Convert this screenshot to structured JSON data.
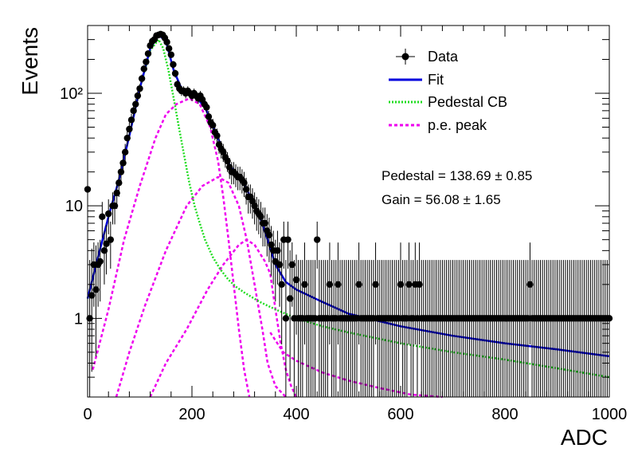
{
  "chart_data": {
    "type": "scatter",
    "xlabel": "ADC",
    "ylabel": "Events",
    "xlim": [
      0,
      1000
    ],
    "ylim": [
      0.2,
      400
    ],
    "yscale": "log",
    "grid": false,
    "legend_position": "top-right",
    "x_ticks": [
      "0",
      "200",
      "400",
      "600",
      "800",
      "1000"
    ],
    "y_ticks": [
      "1",
      "10",
      "10²"
    ],
    "legend": [
      {
        "label": "Data",
        "style": "marker",
        "color": "#000000"
      },
      {
        "label": "Fit",
        "style": "solid",
        "color": "#0000dd"
      },
      {
        "label": "Pedestal CB",
        "style": "dotted",
        "color": "#22dd22"
      },
      {
        "label": "p.e. peak",
        "style": "dashed",
        "color": "#ee00ee"
      }
    ],
    "annotations": [
      "Pedestal = 138.69 ± 0.85",
      "Gain = 56.08 ± 1.65"
    ],
    "fit_params": {
      "pedestal": 138.69,
      "pedestal_err": 0.85,
      "gain": 56.08,
      "gain_err": 1.65
    },
    "data_points": [
      [
        0,
        14
      ],
      [
        4,
        1
      ],
      [
        8,
        1.6
      ],
      [
        12,
        3
      ],
      [
        16,
        1.8
      ],
      [
        20,
        3
      ],
      [
        24,
        3.2
      ],
      [
        28,
        8
      ],
      [
        32,
        4
      ],
      [
        36,
        4.6
      ],
      [
        40,
        8.5
      ],
      [
        44,
        5
      ],
      [
        48,
        10
      ],
      [
        52,
        10
      ],
      [
        56,
        13
      ],
      [
        60,
        16
      ],
      [
        64,
        20
      ],
      [
        68,
        24
      ],
      [
        72,
        30
      ],
      [
        76,
        40
      ],
      [
        80,
        48
      ],
      [
        84,
        58
      ],
      [
        88,
        70
      ],
      [
        92,
        80
      ],
      [
        96,
        95
      ],
      [
        100,
        110
      ],
      [
        104,
        135
      ],
      [
        108,
        165
      ],
      [
        112,
        190
      ],
      [
        116,
        225
      ],
      [
        120,
        265
      ],
      [
        124,
        290
      ],
      [
        128,
        300
      ],
      [
        132,
        325
      ],
      [
        136,
        330
      ],
      [
        140,
        335
      ],
      [
        144,
        330
      ],
      [
        148,
        310
      ],
      [
        152,
        285
      ],
      [
        156,
        250
      ],
      [
        160,
        220
      ],
      [
        164,
        180
      ],
      [
        168,
        150
      ],
      [
        172,
        120
      ],
      [
        176,
        110
      ],
      [
        180,
        105
      ],
      [
        184,
        105
      ],
      [
        188,
        100
      ],
      [
        192,
        105
      ],
      [
        196,
        100
      ],
      [
        200,
        95
      ],
      [
        204,
        100
      ],
      [
        208,
        95
      ],
      [
        212,
        90
      ],
      [
        216,
        95
      ],
      [
        220,
        88
      ],
      [
        224,
        80
      ],
      [
        228,
        75
      ],
      [
        232,
        62
      ],
      [
        236,
        55
      ],
      [
        240,
        52
      ],
      [
        244,
        45
      ],
      [
        248,
        42
      ],
      [
        252,
        35
      ],
      [
        256,
        32
      ],
      [
        260,
        30
      ],
      [
        264,
        27
      ],
      [
        268,
        25
      ],
      [
        272,
        22
      ],
      [
        276,
        20
      ],
      [
        280,
        20
      ],
      [
        284,
        19
      ],
      [
        288,
        18
      ],
      [
        292,
        18
      ],
      [
        296,
        17
      ],
      [
        300,
        16
      ],
      [
        304,
        14
      ],
      [
        308,
        12
      ],
      [
        312,
        12
      ],
      [
        316,
        11
      ],
      [
        320,
        10
      ],
      [
        324,
        9
      ],
      [
        328,
        8.5
      ],
      [
        332,
        8
      ],
      [
        336,
        7
      ],
      [
        340,
        7
      ],
      [
        344,
        6
      ],
      [
        348,
        5.5
      ],
      [
        352,
        4.5
      ],
      [
        356,
        4
      ],
      [
        360,
        3.2
      ],
      [
        364,
        4
      ],
      [
        368,
        3
      ],
      [
        372,
        2
      ],
      [
        376,
        5
      ],
      [
        380,
        1
      ],
      [
        384,
        5
      ],
      [
        388,
        1.5
      ],
      [
        392,
        3
      ],
      [
        396,
        1
      ],
      [
        400,
        2.2
      ],
      [
        404,
        1
      ],
      [
        408,
        1
      ],
      [
        412,
        1
      ],
      [
        416,
        2
      ],
      [
        420,
        1
      ],
      [
        424,
        1
      ],
      [
        428,
        1
      ],
      [
        432,
        1
      ],
      [
        436,
        1
      ],
      [
        440,
        5
      ],
      [
        444,
        1
      ],
      [
        448,
        1
      ],
      [
        452,
        1
      ],
      [
        456,
        1
      ],
      [
        460,
        1
      ],
      [
        464,
        2
      ],
      [
        468,
        1
      ],
      [
        472,
        1
      ],
      [
        476,
        1
      ],
      [
        480,
        2
      ],
      [
        484,
        1
      ],
      [
        488,
        1
      ],
      [
        492,
        1
      ],
      [
        496,
        1
      ],
      [
        500,
        1
      ],
      [
        504,
        1
      ],
      [
        508,
        1
      ],
      [
        512,
        1
      ],
      [
        516,
        1
      ],
      [
        520,
        2
      ],
      [
        524,
        1
      ],
      [
        528,
        1
      ],
      [
        532,
        1
      ],
      [
        536,
        1
      ],
      [
        540,
        1
      ],
      [
        544,
        1
      ],
      [
        548,
        1
      ],
      [
        552,
        2
      ],
      [
        556,
        1
      ],
      [
        560,
        1
      ],
      [
        564,
        1
      ],
      [
        568,
        1
      ],
      [
        572,
        1
      ],
      [
        576,
        1
      ],
      [
        580,
        1
      ],
      [
        584,
        1
      ],
      [
        588,
        1
      ],
      [
        592,
        1
      ],
      [
        596,
        1
      ],
      [
        600,
        2
      ],
      [
        604,
        1
      ],
      [
        608,
        1
      ],
      [
        612,
        1
      ],
      [
        616,
        2
      ],
      [
        620,
        1
      ],
      [
        624,
        1
      ],
      [
        628,
        2
      ],
      [
        632,
        1
      ],
      [
        636,
        2
      ],
      [
        640,
        1
      ],
      [
        644,
        1
      ],
      [
        648,
        1
      ],
      [
        652,
        1
      ],
      [
        656,
        1
      ],
      [
        660,
        1
      ],
      [
        664,
        1
      ],
      [
        668,
        1
      ],
      [
        672,
        1
      ],
      [
        676,
        1
      ],
      [
        680,
        1
      ],
      [
        684,
        1
      ],
      [
        688,
        1
      ],
      [
        692,
        1
      ],
      [
        696,
        1
      ],
      [
        700,
        1
      ],
      [
        704,
        1
      ],
      [
        708,
        1
      ],
      [
        712,
        1
      ],
      [
        716,
        1
      ],
      [
        720,
        1
      ],
      [
        724,
        1
      ],
      [
        728,
        1
      ],
      [
        732,
        1
      ],
      [
        736,
        1
      ],
      [
        740,
        1
      ],
      [
        744,
        1
      ],
      [
        748,
        1
      ],
      [
        752,
        1
      ],
      [
        756,
        1
      ],
      [
        760,
        1
      ],
      [
        764,
        1
      ],
      [
        768,
        1
      ],
      [
        772,
        1
      ],
      [
        776,
        1
      ],
      [
        780,
        1
      ],
      [
        784,
        1
      ],
      [
        788,
        1
      ],
      [
        792,
        1
      ],
      [
        796,
        1
      ],
      [
        800,
        1
      ],
      [
        804,
        1
      ],
      [
        808,
        1
      ],
      [
        812,
        1
      ],
      [
        816,
        1
      ],
      [
        820,
        1
      ],
      [
        824,
        1
      ],
      [
        828,
        1
      ],
      [
        832,
        1
      ],
      [
        836,
        1
      ],
      [
        840,
        1
      ],
      [
        844,
        1
      ],
      [
        848,
        2
      ],
      [
        852,
        1
      ],
      [
        856,
        1
      ],
      [
        860,
        1
      ],
      [
        864,
        1
      ],
      [
        868,
        1
      ],
      [
        872,
        1
      ],
      [
        876,
        1
      ],
      [
        880,
        1
      ],
      [
        884,
        1
      ],
      [
        888,
        1
      ],
      [
        892,
        1
      ],
      [
        896,
        1
      ],
      [
        900,
        1
      ],
      [
        904,
        1
      ],
      [
        908,
        1
      ],
      [
        912,
        1
      ],
      [
        916,
        1
      ],
      [
        920,
        1
      ],
      [
        924,
        1
      ],
      [
        928,
        1
      ],
      [
        932,
        1
      ],
      [
        936,
        1
      ],
      [
        940,
        1
      ],
      [
        944,
        1
      ],
      [
        948,
        1
      ],
      [
        952,
        1
      ],
      [
        956,
        1
      ],
      [
        960,
        1
      ],
      [
        964,
        1
      ],
      [
        968,
        1
      ],
      [
        972,
        1
      ],
      [
        976,
        1
      ],
      [
        980,
        1
      ],
      [
        984,
        1
      ],
      [
        988,
        1
      ],
      [
        992,
        1
      ],
      [
        996,
        1
      ],
      [
        1000,
        1
      ]
    ],
    "curves": {
      "fit": [
        [
          0,
          1.5
        ],
        [
          20,
          3.5
        ],
        [
          40,
          8
        ],
        [
          60,
          17
        ],
        [
          80,
          42
        ],
        [
          100,
          110
        ],
        [
          120,
          250
        ],
        [
          136,
          330
        ],
        [
          150,
          290
        ],
        [
          165,
          160
        ],
        [
          180,
          110
        ],
        [
          195,
          100
        ],
        [
          210,
          90
        ],
        [
          225,
          75
        ],
        [
          240,
          52
        ],
        [
          255,
          35
        ],
        [
          270,
          24
        ],
        [
          285,
          19
        ],
        [
          300,
          16
        ],
        [
          315,
          11
        ],
        [
          330,
          8
        ],
        [
          345,
          5
        ],
        [
          360,
          3
        ],
        [
          380,
          2.1
        ],
        [
          400,
          1.8
        ],
        [
          450,
          1.4
        ],
        [
          500,
          1.1
        ],
        [
          600,
          0.85
        ],
        [
          700,
          0.7
        ],
        [
          800,
          0.6
        ],
        [
          900,
          0.53
        ],
        [
          1000,
          0.46
        ]
      ],
      "pedestal_cb": [
        [
          0,
          1.5
        ],
        [
          20,
          3.5
        ],
        [
          40,
          8
        ],
        [
          60,
          17
        ],
        [
          80,
          42
        ],
        [
          100,
          110
        ],
        [
          120,
          240
        ],
        [
          136,
          300
        ],
        [
          145,
          250
        ],
        [
          155,
          160
        ],
        [
          165,
          90
        ],
        [
          175,
          50
        ],
        [
          185,
          28
        ],
        [
          195,
          16
        ],
        [
          205,
          10
        ],
        [
          215,
          7
        ],
        [
          225,
          5
        ],
        [
          240,
          3.5
        ],
        [
          255,
          2.7
        ],
        [
          270,
          2.2
        ],
        [
          285,
          1.9
        ],
        [
          300,
          1.7
        ],
        [
          330,
          1.4
        ],
        [
          360,
          1.2
        ],
        [
          400,
          1.0
        ],
        [
          450,
          0.85
        ],
        [
          500,
          0.75
        ],
        [
          600,
          0.6
        ],
        [
          700,
          0.5
        ],
        [
          800,
          0.43
        ],
        [
          900,
          0.36
        ],
        [
          1000,
          0.3
        ]
      ],
      "pe_peak_1": [
        [
          10,
          0.35
        ],
        [
          40,
          1.2
        ],
        [
          70,
          5
        ],
        [
          100,
          15
        ],
        [
          130,
          40
        ],
        [
          150,
          65
        ],
        [
          170,
          80
        ],
        [
          195,
          90
        ],
        [
          215,
          80
        ],
        [
          235,
          50
        ],
        [
          250,
          25
        ],
        [
          260,
          12
        ],
        [
          270,
          5
        ],
        [
          280,
          2
        ],
        [
          290,
          0.8
        ],
        [
          300,
          0.35
        ],
        [
          310,
          0.2
        ]
      ],
      "pe_peak_2": [
        [
          55,
          0.2
        ],
        [
          80,
          0.5
        ],
        [
          110,
          1.3
        ],
        [
          150,
          4
        ],
        [
          190,
          10
        ],
        [
          220,
          15
        ],
        [
          250,
          18
        ],
        [
          270,
          16
        ],
        [
          290,
          10
        ],
        [
          305,
          5
        ],
        [
          320,
          2
        ],
        [
          335,
          0.8
        ],
        [
          345,
          0.4
        ],
        [
          360,
          0.25
        ],
        [
          380,
          0.2
        ]
      ],
      "pe_peak_3": [
        [
          120,
          0.2
        ],
        [
          150,
          0.4
        ],
        [
          190,
          0.8
        ],
        [
          230,
          1.8
        ],
        [
          260,
          3
        ],
        [
          290,
          4.5
        ],
        [
          305,
          5
        ],
        [
          320,
          4.5
        ],
        [
          340,
          3.2
        ],
        [
          350,
          2.5
        ],
        [
          360,
          1.2
        ],
        [
          370,
          0.6
        ],
        [
          380,
          0.35
        ],
        [
          390,
          0.25
        ],
        [
          400,
          0.2
        ]
      ],
      "pe_peak_tail": [
        [
          350,
          0.75
        ],
        [
          375,
          0.5
        ],
        [
          400,
          0.42
        ],
        [
          450,
          0.33
        ],
        [
          500,
          0.28
        ],
        [
          560,
          0.24
        ],
        [
          620,
          0.21
        ],
        [
          680,
          0.2
        ]
      ]
    }
  }
}
